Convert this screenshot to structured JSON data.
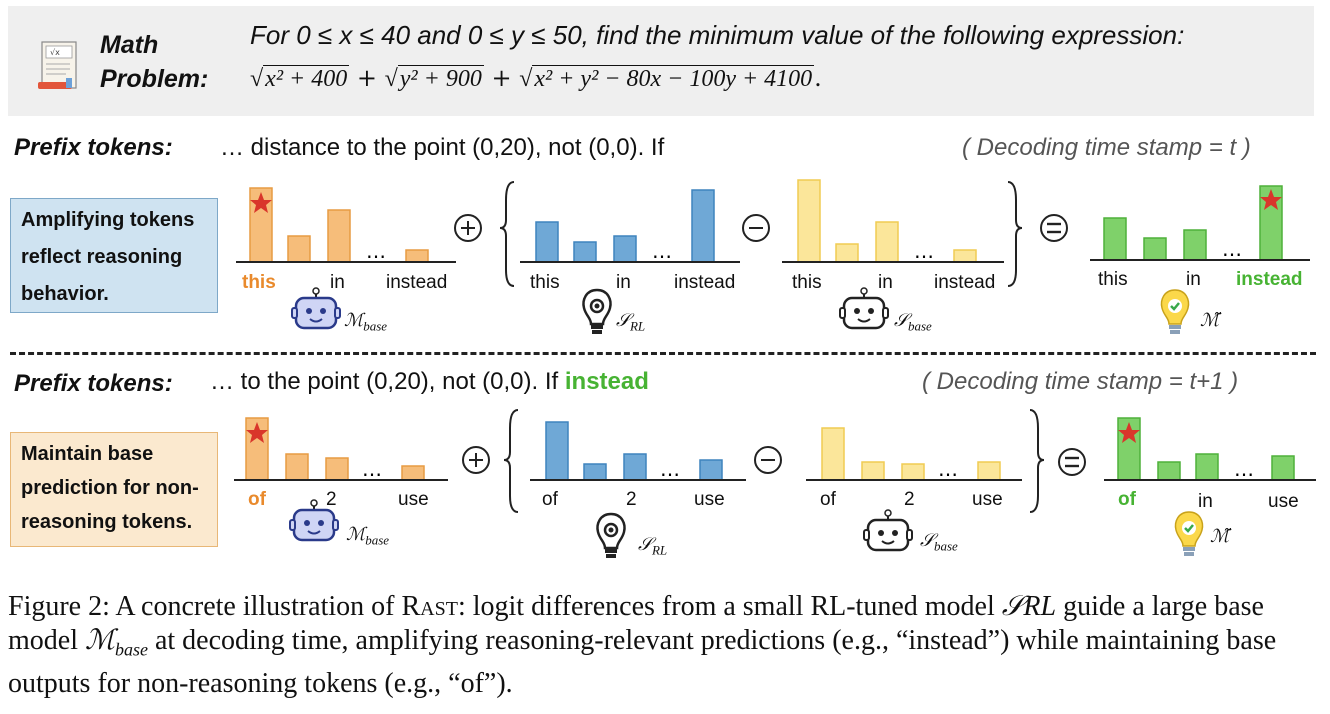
{
  "math": {
    "label_line1": "Math",
    "label_line2": "Problem:",
    "line1": "For 0 ≤ x ≤ 40 and 0 ≤ y ≤ 50, find the minimum value of the following expression:",
    "rad1": "x² + 400",
    "rad2": "y² + 900",
    "rad3": "x² + y² − 80x − 100y + 4100",
    "plus": "+",
    "end": "."
  },
  "row1": {
    "prefix_label": "Prefix tokens:",
    "prefix_text": "… distance to the point (0,20), not (0,0). If",
    "timestamp": "( Decoding time stamp = t )",
    "side_box": [
      "Amplifying tokens",
      "reflect reasoning",
      "behavior."
    ],
    "tokens_base": [
      "this",
      "in",
      "instead"
    ],
    "tokens_rl": [
      "this",
      "in",
      "instead"
    ],
    "tokens_sbase": [
      "this",
      "in",
      "instead"
    ],
    "tokens_result": [
      "this",
      "in",
      "instead"
    ],
    "ellipsis": "…"
  },
  "row2": {
    "prefix_label": "Prefix tokens:",
    "prefix_text": "…  to the point (0,20), not (0,0). If",
    "prefix_highlight": "instead",
    "timestamp": "( Decoding time stamp = t+1 )",
    "side_box": [
      "Maintain base",
      "prediction for non-",
      "reasoning tokens."
    ],
    "tokens_base": [
      "of",
      "2",
      "use"
    ],
    "tokens_rl": [
      "of",
      "2",
      "use"
    ],
    "tokens_sbase": [
      "of",
      "2",
      "use"
    ],
    "tokens_result": [
      "of",
      "in",
      "use"
    ],
    "ellipsis": "…"
  },
  "operators": {
    "plus": "+",
    "minus": "−",
    "equals": "="
  },
  "models": {
    "m_base": "ℳ",
    "m_base_sub": "base",
    "s_rl": "𝒮",
    "s_rl_sub": "RL",
    "s_base": "𝒮",
    "s_base_sub": "base",
    "m_tilde": "ℳ̃"
  },
  "colors": {
    "orange": "#f6bd7a",
    "blue": "#6fa8d6",
    "yellow": "#fbe69a",
    "green": "#7fd16a",
    "star": "#d9362b"
  },
  "caption": {
    "prefix": "Figure 2: A concrete illustration of ",
    "rast": "Rast",
    "part1": ": logit differences from a small RL-tuned model ",
    "srl": "𝒮RL",
    "part2": " guide a large base model ",
    "mbase": "ℳ",
    "mbase_sub": "base",
    "part3": " at decoding time, amplifying reasoning-relevant predictions (e.g., “instead”) while maintaining base outputs for non-reasoning tokens (e.g., “of”)."
  }
}
